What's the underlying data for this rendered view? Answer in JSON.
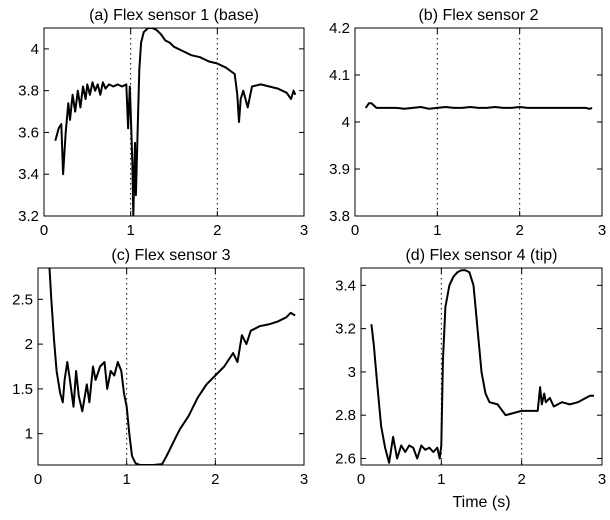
{
  "chart_data": [
    {
      "type": "line",
      "title": "(a) Flex sensor 1 (base)",
      "xlabel": "",
      "ylabel": "",
      "xlim": [
        0,
        3
      ],
      "ylim": [
        3.2,
        4.1
      ],
      "xticks": [
        0,
        1,
        2,
        3
      ],
      "yticks": [
        3.2,
        3.4,
        3.6,
        3.8,
        4
      ],
      "xtick_labels": [
        "0",
        "1",
        "2",
        "3"
      ],
      "ytick_labels": [
        "3.2",
        "3.4",
        "3.6",
        "3.8",
        "4"
      ],
      "vlines": [
        1.0,
        2.0
      ],
      "series": [
        {
          "x": [
            0.13,
            0.17,
            0.2,
            0.22,
            0.25,
            0.28,
            0.3,
            0.33,
            0.36,
            0.39,
            0.42,
            0.45,
            0.48,
            0.5,
            0.53,
            0.56,
            0.59,
            0.62,
            0.65,
            0.68,
            0.71,
            0.75,
            0.8,
            0.85,
            0.9,
            0.95,
            0.97,
            0.99,
            1.0,
            1.02,
            1.03,
            1.05,
            1.06,
            1.08,
            1.1,
            1.12,
            1.15,
            1.2,
            1.25,
            1.3,
            1.35,
            1.4,
            1.45,
            1.5,
            1.6,
            1.7,
            1.8,
            1.9,
            2.0,
            2.1,
            2.2,
            2.23,
            2.25,
            2.27,
            2.3,
            2.35,
            2.4,
            2.5,
            2.6,
            2.7,
            2.8,
            2.85,
            2.88,
            2.9
          ],
          "y": [
            3.56,
            3.62,
            3.64,
            3.4,
            3.6,
            3.74,
            3.66,
            3.78,
            3.7,
            3.8,
            3.72,
            3.82,
            3.76,
            3.83,
            3.78,
            3.84,
            3.8,
            3.83,
            3.78,
            3.84,
            3.81,
            3.83,
            3.82,
            3.83,
            3.82,
            3.83,
            3.62,
            3.82,
            3.7,
            3.45,
            3.2,
            3.55,
            3.3,
            3.6,
            3.9,
            4.03,
            4.08,
            4.1,
            4.1,
            4.09,
            4.07,
            4.04,
            4.03,
            4.01,
            3.99,
            3.97,
            3.96,
            3.94,
            3.93,
            3.91,
            3.88,
            3.78,
            3.65,
            3.76,
            3.8,
            3.72,
            3.82,
            3.83,
            3.82,
            3.81,
            3.79,
            3.76,
            3.8,
            3.78
          ]
        }
      ]
    },
    {
      "type": "line",
      "title": "(b) Flex sensor 2",
      "xlabel": "",
      "ylabel": "",
      "xlim": [
        0,
        3
      ],
      "ylim": [
        3.8,
        4.2
      ],
      "xticks": [
        0,
        1,
        2,
        3
      ],
      "yticks": [
        3.8,
        3.9,
        4.0,
        4.1,
        4.2
      ],
      "xtick_labels": [
        "0",
        "1",
        "2",
        "3"
      ],
      "ytick_labels": [
        "3.8",
        "3.9",
        "4",
        "4.1",
        "4.2"
      ],
      "vlines": [
        1.0,
        2.0
      ],
      "series": [
        {
          "x": [
            0.13,
            0.17,
            0.2,
            0.23,
            0.26,
            0.3,
            0.4,
            0.5,
            0.6,
            0.7,
            0.8,
            0.9,
            1.0,
            1.1,
            1.2,
            1.3,
            1.4,
            1.5,
            1.6,
            1.7,
            1.8,
            1.9,
            2.0,
            2.1,
            2.2,
            2.3,
            2.4,
            2.5,
            2.6,
            2.7,
            2.8,
            2.85,
            2.88
          ],
          "y": [
            4.03,
            4.04,
            4.04,
            4.035,
            4.03,
            4.03,
            4.03,
            4.03,
            4.028,
            4.03,
            4.032,
            4.028,
            4.03,
            4.032,
            4.03,
            4.03,
            4.032,
            4.03,
            4.03,
            4.032,
            4.03,
            4.03,
            4.032,
            4.03,
            4.03,
            4.03,
            4.03,
            4.03,
            4.03,
            4.03,
            4.03,
            4.028,
            4.03
          ]
        }
      ]
    },
    {
      "type": "line",
      "title": "(c) Flex sensor 3",
      "xlabel": "",
      "ylabel": "",
      "xlim": [
        0,
        3
      ],
      "ylim": [
        0.65,
        2.85
      ],
      "xticks": [
        0,
        1,
        2,
        3
      ],
      "yticks": [
        1,
        1.5,
        2,
        2.5
      ],
      "xtick_labels": [
        "0",
        "1",
        "2",
        "3"
      ],
      "ytick_labels": [
        "1",
        "1.5",
        "2",
        "2.5"
      ],
      "vlines": [
        1.0,
        2.0
      ],
      "series": [
        {
          "x": [
            0.13,
            0.15,
            0.18,
            0.21,
            0.25,
            0.28,
            0.3,
            0.33,
            0.36,
            0.4,
            0.43,
            0.46,
            0.5,
            0.55,
            0.58,
            0.62,
            0.65,
            0.7,
            0.75,
            0.78,
            0.82,
            0.86,
            0.9,
            0.94,
            0.97,
            1.0,
            1.03,
            1.06,
            1.1,
            1.15,
            1.2,
            1.3,
            1.4,
            1.45,
            1.5,
            1.55,
            1.6,
            1.7,
            1.8,
            1.9,
            2.0,
            2.1,
            2.2,
            2.25,
            2.3,
            2.35,
            2.4,
            2.5,
            2.6,
            2.7,
            2.8,
            2.85,
            2.9
          ],
          "y": [
            2.85,
            2.5,
            2.05,
            1.7,
            1.45,
            1.35,
            1.6,
            1.8,
            1.6,
            1.3,
            1.7,
            1.42,
            1.25,
            1.55,
            1.35,
            1.75,
            1.6,
            1.75,
            1.8,
            1.5,
            1.7,
            1.65,
            1.8,
            1.7,
            1.45,
            1.3,
            1.0,
            0.75,
            0.67,
            0.65,
            0.65,
            0.65,
            0.66,
            0.75,
            0.85,
            0.95,
            1.05,
            1.2,
            1.4,
            1.55,
            1.65,
            1.75,
            1.9,
            1.8,
            2.1,
            2.0,
            2.15,
            2.2,
            2.22,
            2.25,
            2.3,
            2.35,
            2.32
          ]
        }
      ]
    },
    {
      "type": "line",
      "title": "(d) Flex sensor 4 (tip)",
      "xlabel": "Time (s)",
      "ylabel": "",
      "xlim": [
        0,
        3
      ],
      "ylim": [
        2.57,
        3.48
      ],
      "xticks": [
        0,
        1,
        2,
        3
      ],
      "yticks": [
        2.6,
        2.8,
        3,
        3.2,
        3.4
      ],
      "xtick_labels": [
        "0",
        "1",
        "2",
        "3"
      ],
      "ytick_labels": [
        "2.6",
        "2.8",
        "3",
        "3.2",
        "3.4"
      ],
      "vlines": [
        1.0,
        2.0
      ],
      "series": [
        {
          "x": [
            0.13,
            0.16,
            0.2,
            0.25,
            0.3,
            0.35,
            0.4,
            0.45,
            0.5,
            0.55,
            0.6,
            0.65,
            0.7,
            0.75,
            0.8,
            0.85,
            0.9,
            0.95,
            0.98,
            1.0,
            1.02,
            1.05,
            1.1,
            1.15,
            1.2,
            1.25,
            1.3,
            1.35,
            1.4,
            1.45,
            1.5,
            1.55,
            1.6,
            1.7,
            1.8,
            1.9,
            2.0,
            2.1,
            2.2,
            2.23,
            2.25,
            2.28,
            2.3,
            2.35,
            2.4,
            2.5,
            2.6,
            2.7,
            2.8,
            2.85,
            2.9
          ],
          "y": [
            3.22,
            3.12,
            2.95,
            2.75,
            2.65,
            2.58,
            2.7,
            2.6,
            2.66,
            2.63,
            2.66,
            2.65,
            2.6,
            2.66,
            2.64,
            2.65,
            2.63,
            2.65,
            2.6,
            2.66,
            3.05,
            3.3,
            3.4,
            3.44,
            3.46,
            3.47,
            3.47,
            3.46,
            3.4,
            3.2,
            3.0,
            2.9,
            2.86,
            2.85,
            2.8,
            2.81,
            2.82,
            2.82,
            2.82,
            2.93,
            2.85,
            2.9,
            2.86,
            2.88,
            2.84,
            2.86,
            2.85,
            2.86,
            2.88,
            2.89,
            2.89
          ]
        }
      ]
    }
  ]
}
